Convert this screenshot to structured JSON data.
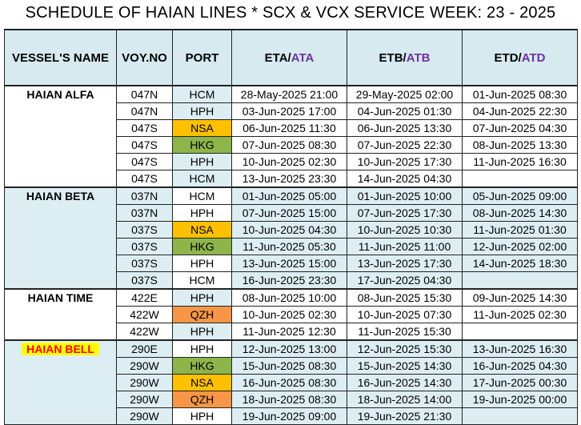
{
  "title": "SCHEDULE OF HAIAN LINES * SCX & VCX SERVICE WEEK: 23 - 2025",
  "headers": {
    "vessel": "VESSEL'S NAME",
    "voy": "VOY.NO",
    "port": "PORT",
    "eta": "ETA/",
    "ata": "ATA",
    "etb": "ETB/",
    "atb": "ATB",
    "etd": "ETD/",
    "atd": "ATD"
  },
  "vessels": [
    {
      "name": "HAIAN ALFA",
      "rows": [
        {
          "voy": "047N",
          "port": "HCM",
          "eta": "28-May-2025 21:00",
          "etb": "29-May-2025 02:00",
          "etd": "01-Jun-2025 08:30"
        },
        {
          "voy": "047N",
          "port": "HPH",
          "eta": "03-Jun-2025 17:00",
          "etb": "04-Jun-2025 01:30",
          "etd": "04-Jun-2025 22:30"
        },
        {
          "voy": "047S",
          "port": "NSA",
          "eta": "06-Jun-2025 11:30",
          "etb": "06-Jun-2025 13:30",
          "etd": "07-Jun-2025 04:30"
        },
        {
          "voy": "047S",
          "port": "HKG",
          "eta": "07-Jun-2025 08:30",
          "etb": "07-Jun-2025 22:30",
          "etd": "08-Jun-2025 13:30"
        },
        {
          "voy": "047S",
          "port": "HPH",
          "eta": "10-Jun-2025 02:30",
          "etb": "10-Jun-2025 17:30",
          "etd": "11-Jun-2025 16:30"
        },
        {
          "voy": "047S",
          "port": "HCM",
          "eta": "13-Jun-2025 23:30",
          "etb": "14-Jun-2025 04:30",
          "etd": ""
        }
      ]
    },
    {
      "name": "HAIAN BETA",
      "rows": [
        {
          "voy": "037N",
          "port": "HCM",
          "eta": "01-Jun-2025 05:00",
          "etb": "01-Jun-2025 10:00",
          "etd": "05-Jun-2025 09:00"
        },
        {
          "voy": "037N",
          "port": "HPH",
          "eta": "07-Jun-2025 15:00",
          "etb": "07-Jun-2025 17:30",
          "etd": "08-Jun-2025 14:30"
        },
        {
          "voy": "037S",
          "port": "NSA",
          "eta": "10-Jun-2025 04:30",
          "etb": "10-Jun-2025 10:30",
          "etd": "11-Jun-2025 01:30"
        },
        {
          "voy": "037S",
          "port": "HKG",
          "eta": "11-Jun-2025 05:30",
          "etb": "11-Jun-2025 11:00",
          "etd": "12-Jun-2025 02:00"
        },
        {
          "voy": "037S",
          "port": "HPH",
          "eta": "13-Jun-2025 15:00",
          "etb": "13-Jun-2025 17:30",
          "etd": "14-Jun-2025 18:30"
        },
        {
          "voy": "037S",
          "port": "HCM",
          "eta": "16-Jun-2025 23:30",
          "etb": "17-Jun-2025 04:30",
          "etd": ""
        }
      ]
    },
    {
      "name": "HAIAN TIME",
      "rows": [
        {
          "voy": "422E",
          "port": "HPH",
          "eta": "08-Jun-2025 10:00",
          "etb": "08-Jun-2025 15:30",
          "etd": "09-Jun-2025 14:30"
        },
        {
          "voy": "422W",
          "port": "QZH",
          "eta": "10-Jun-2025 02:30",
          "etb": "10-Jun-2025 07:30",
          "etd": "11-Jun-2025 02:30"
        },
        {
          "voy": "422W",
          "port": "HPH",
          "eta": "11-Jun-2025 12:30",
          "etb": "11-Jun-2025 15:30",
          "etd": ""
        }
      ]
    },
    {
      "name": "HAIAN BELL",
      "rows": [
        {
          "voy": "290E",
          "port": "HPH",
          "eta": "12-Jun-2025 13:00",
          "etb": "12-Jun-2025 15:30",
          "etd": "13-Jun-2025 16:30"
        },
        {
          "voy": "290W",
          "port": "HKG",
          "eta": "15-Jun-2025 08:30",
          "etb": "15-Jun-2025 14:30",
          "etd": "16-Jun-2025 04:30"
        },
        {
          "voy": "290W",
          "port": "NSA",
          "eta": "16-Jun-2025 08:30",
          "etb": "16-Jun-2025 14:30",
          "etd": "17-Jun-2025 00:30"
        },
        {
          "voy": "290W",
          "port": "QZH",
          "eta": "18-Jun-2025 08:30",
          "etb": "18-Jun-2025 14:00",
          "etd": "19-Jun-2025 00:00"
        },
        {
          "voy": "290W",
          "port": "HPH",
          "eta": "19-Jun-2025 09:00",
          "etb": "19-Jun-2025 21:30",
          "etd": ""
        }
      ]
    }
  ],
  "colors": {
    "header_bg": "#d6eaf0",
    "group_blue": "#ddeef3",
    "nsa": "#ffc000",
    "hkg": "#8db54a",
    "qzh": "#f79646",
    "actual_text": "#7030a0",
    "bell_highlight": "#ffff00",
    "bell_text": "#ff0000"
  }
}
